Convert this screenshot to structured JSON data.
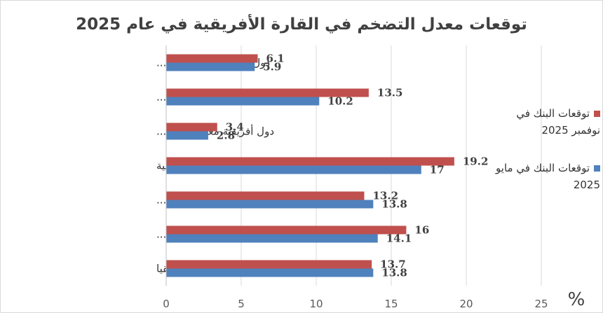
{
  "chart_data": {
    "type": "bar",
    "orientation": "horizontal",
    "title": "توقعات معدل التضخم في القارة الأفريقية في عام 2025",
    "categories": [
      "دول أفريقية غير معتمدة...",
      "دول أفريقية  معتمدة على...",
      "دول أفريقية معتمدة على...",
      "دول مصدري النفط الأفريقية",
      "الدول متوسطة الدخل...",
      "الدول منخفضة الدخل...",
      "أفريقيا"
    ],
    "series": [
      {
        "name": "توقعات البنك في نوفمبر 2025",
        "color": "#c0504d",
        "values": [
          6.1,
          13.5,
          3.4,
          19.2,
          13.2,
          16,
          13.7
        ],
        "labels": [
          "6.1",
          "13.5",
          "3.4",
          "19.2",
          "13.2",
          "16",
          "13.7"
        ]
      },
      {
        "name": "توقعات البنك في مايو 2025",
        "color": "#4f81bd",
        "values": [
          5.9,
          10.2,
          2.8,
          17,
          13.8,
          14.1,
          13.8
        ],
        "labels": [
          "5.9",
          "10.2",
          "2.8",
          "17",
          "13.8",
          "14.1",
          "13.8"
        ]
      }
    ],
    "xlim": [
      0,
      25
    ],
    "xticks": [
      "0",
      "5",
      "10",
      "15",
      "20",
      "25"
    ],
    "unit": "%",
    "grid": true,
    "legend_position": "right"
  }
}
